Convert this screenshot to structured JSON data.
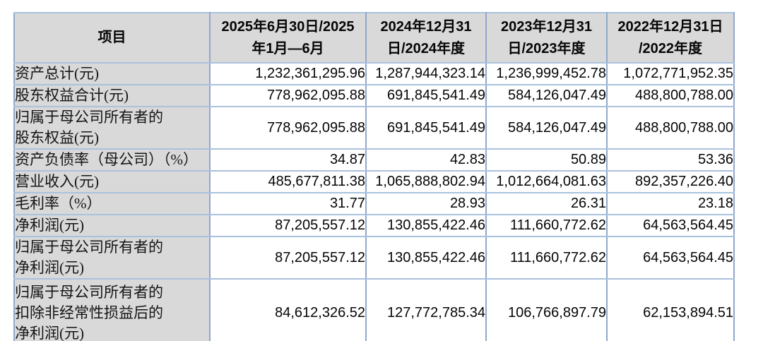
{
  "table": {
    "header": {
      "item_label": "项目",
      "periods": [
        "2025年6月30日/2025\n年1月—6月",
        "2024年12月31\n日/2024年度",
        "2023年12月31\n日/2023年度",
        "2022年12月31日\n/2022年度"
      ]
    },
    "rows": [
      {
        "label": "资产总计(元)",
        "values": [
          "1,232,361,295.96",
          "1,287,944,323.14",
          "1,236,999,452.78",
          "1,072,771,952.35"
        ]
      },
      {
        "label": "股东权益合计(元)",
        "values": [
          "778,962,095.88",
          "691,845,541.49",
          "584,126,047.49",
          "488,800,788.00"
        ]
      },
      {
        "label": "归属于母公司所有者的\n股东权益(元)",
        "values": [
          "778,962,095.88",
          "691,845,541.49",
          "584,126,047.49",
          "488,800,788.00"
        ]
      },
      {
        "label": "资产负债率（母公司）（%）",
        "values": [
          "34.87",
          "42.83",
          "50.89",
          "53.36"
        ]
      },
      {
        "label": "营业收入(元)",
        "values": [
          "485,677,811.38",
          "1,065,888,802.94",
          "1,012,664,081.63",
          "892,357,226.40"
        ]
      },
      {
        "label": "毛利率（%）",
        "values": [
          "31.77",
          "28.93",
          "26.31",
          "23.18"
        ]
      },
      {
        "label": "净利润(元)",
        "values": [
          "87,205,557.12",
          "130,855,422.46",
          "111,660,772.62",
          "64,563,564.45"
        ]
      },
      {
        "label": "归属于母公司所有者的\n净利润(元)",
        "values": [
          "87,205,557.12",
          "130,855,422.46",
          "111,660,772.62",
          "64,563,564.45"
        ]
      },
      {
        "label": "归属于母公司所有者的\n扣除非经常性损益后的\n净利润(元)",
        "values": [
          "84,612,326.52",
          "127,772,785.34",
          "106,766,897.79",
          "62,153,894.51"
        ]
      }
    ]
  },
  "colors": {
    "cell_gray": "#D9D9D9",
    "vertical_border": "#8FA8CB",
    "horizontal_border": "#AAC1DE"
  }
}
